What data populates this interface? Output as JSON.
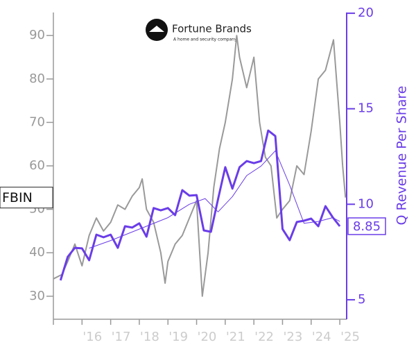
{
  "chart_data": {
    "type": "line",
    "logo": {
      "title": "Fortune Brands",
      "subtitle": "A home and security company"
    },
    "y2_label": "Q Revenue Per Share",
    "xlim": [
      2015,
      2025.24
    ],
    "xticks": [
      {
        "value": 2015,
        "label": ""
      },
      {
        "value": 2016,
        "label": "'16"
      },
      {
        "value": 2017,
        "label": "'17"
      },
      {
        "value": 2018,
        "label": "'18"
      },
      {
        "value": 2019,
        "label": "'19"
      },
      {
        "value": 2020,
        "label": "'20"
      },
      {
        "value": 2021,
        "label": "'21"
      },
      {
        "value": 2022,
        "label": "'22"
      },
      {
        "value": 2023,
        "label": "'23"
      },
      {
        "value": 2024,
        "label": "'24"
      },
      {
        "value": 2025,
        "label": "'25"
      }
    ],
    "ylim": [
      24.7,
      95.3
    ],
    "yticks": [
      30,
      40,
      50,
      60,
      70,
      80,
      90
    ],
    "y2lim": [
      3.98,
      20.04
    ],
    "y2ticks": [
      5,
      10,
      15,
      20
    ],
    "series": [
      {
        "name": "FBIN",
        "color": "#999999",
        "width": 2,
        "x": [
          2015.0,
          2015.3,
          2015.5,
          2015.75,
          2016.0,
          2016.25,
          2016.5,
          2016.75,
          2017.0,
          2017.25,
          2017.5,
          2017.75,
          2018.0,
          2018.1,
          2018.25,
          2018.5,
          2018.75,
          2018.9,
          2019.0,
          2019.25,
          2019.5,
          2019.75,
          2020.0,
          2020.2,
          2020.4,
          2020.6,
          2020.8,
          2021.0,
          2021.25,
          2021.4,
          2021.5,
          2021.75,
          2022.0,
          2022.2,
          2022.4,
          2022.6,
          2022.8,
          2023.0,
          2023.25,
          2023.5,
          2023.75,
          2024.0,
          2024.25,
          2024.5,
          2024.78,
          2025.0,
          2025.1,
          2025.2
        ],
        "values": [
          34,
          35,
          38,
          42,
          37,
          44,
          48,
          45,
          47,
          51,
          50,
          53,
          55,
          57,
          50,
          47,
          40,
          33,
          38,
          42,
          44,
          48,
          52,
          30,
          40,
          55,
          64,
          70,
          80,
          90,
          85,
          78,
          85,
          70,
          62,
          60,
          48,
          50,
          52,
          60,
          58,
          68,
          80,
          82,
          89,
          70,
          60,
          52.7
        ]
      },
      {
        "name": "Q Revenue Per Share",
        "color": "#6a3de8",
        "width": 3,
        "axis": "y2",
        "x": [
          2015.25,
          2015.5,
          2015.75,
          2016.0,
          2016.25,
          2016.5,
          2016.75,
          2017.0,
          2017.25,
          2017.5,
          2017.75,
          2018.0,
          2018.25,
          2018.5,
          2018.75,
          2019.0,
          2019.25,
          2019.5,
          2019.75,
          2020.0,
          2020.25,
          2020.5,
          2020.75,
          2021.0,
          2021.25,
          2021.5,
          2021.75,
          2022.0,
          2022.25,
          2022.5,
          2022.75,
          2023.0,
          2023.25,
          2023.5,
          2023.75,
          2024.0,
          2024.25,
          2024.5,
          2024.75,
          2025.0
        ],
        "values": [
          6.02,
          7.25,
          7.72,
          7.69,
          7.07,
          8.41,
          8.27,
          8.41,
          7.72,
          8.85,
          8.78,
          9.0,
          8.3,
          9.8,
          9.68,
          9.8,
          9.43,
          10.74,
          10.45,
          10.48,
          8.63,
          8.56,
          10.27,
          11.94,
          10.82,
          11.94,
          12.26,
          12.15,
          12.26,
          13.86,
          13.57,
          8.7,
          8.12,
          9.07,
          9.14,
          9.25,
          8.85,
          9.9,
          9.32,
          8.85
        ]
      },
      {
        "color": "#6a3de8",
        "width": 1,
        "axis": "y2",
        "x": [
          2016.25,
          2017.0,
          2018.0,
          2019.0,
          2019.75,
          2020.3,
          2020.75,
          2021.25,
          2021.75,
          2022.25,
          2022.75,
          2023.25,
          2023.75,
          2024.25,
          2024.75,
          2025.0
        ],
        "values": [
          7.7,
          8.1,
          8.7,
          9.3,
          10.0,
          10.3,
          9.6,
          10.4,
          11.5,
          12.0,
          12.8,
          11.0,
          9.0,
          9.1,
          9.3,
          9.1
        ]
      }
    ],
    "annotations": [
      {
        "label": "FBIN",
        "value": 52.7,
        "axis": "y"
      },
      {
        "label": "8.85",
        "value": 8.85,
        "axis": "y2"
      }
    ]
  }
}
